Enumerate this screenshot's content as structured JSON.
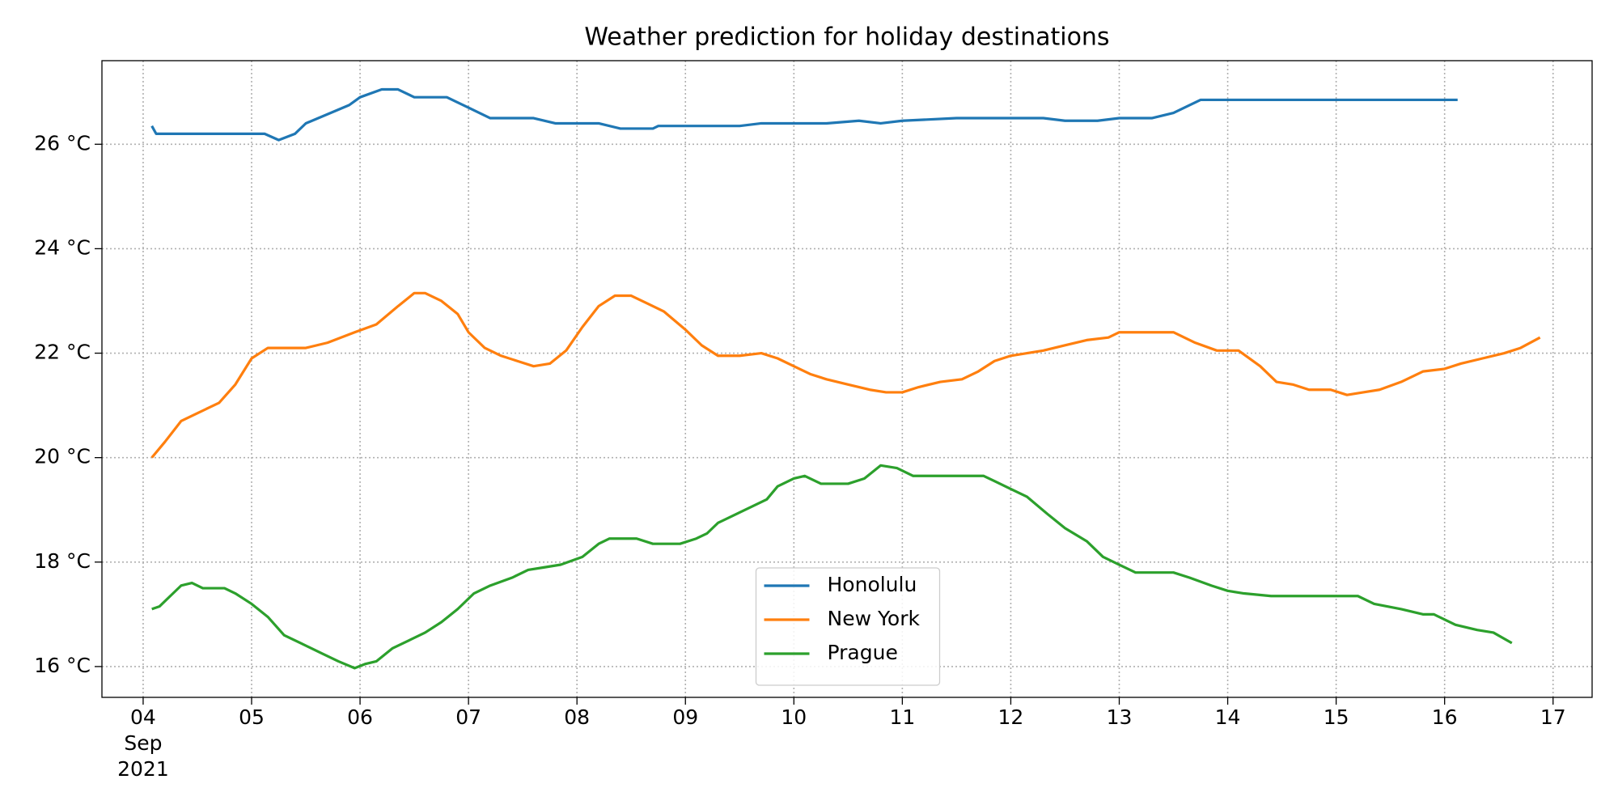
{
  "chart_data": {
    "type": "line",
    "title": "Weather prediction for holiday destinations",
    "x_month": "Sep",
    "x_year": "2021",
    "xlim": [
      3.62,
      17.36
    ],
    "xticks": [
      {
        "value": 4,
        "label": "04"
      },
      {
        "value": 5,
        "label": "05"
      },
      {
        "value": 6,
        "label": "06"
      },
      {
        "value": 7,
        "label": "07"
      },
      {
        "value": 8,
        "label": "08"
      },
      {
        "value": 9,
        "label": "09"
      },
      10,
      11,
      12,
      13,
      14,
      15,
      16,
      17
    ],
    "ylim": [
      15.41,
      27.6
    ],
    "yticks": [
      {
        "value": 16,
        "label": "16 °C"
      },
      {
        "value": 18,
        "label": "18 °C"
      },
      {
        "value": 20,
        "label": "20 °C"
      },
      {
        "value": 22,
        "label": "22 °C"
      },
      {
        "value": 24,
        "label": "24 °C"
      },
      {
        "value": 26,
        "label": "26 °C"
      }
    ],
    "grid": true,
    "legend": "lower center",
    "series": [
      {
        "name": "Honolulu",
        "color": "#1f77b4",
        "x": [
          4.08,
          4.12,
          5.12,
          5.25,
          5.4,
          5.5,
          5.9,
          6.0,
          6.2,
          6.35,
          6.5,
          6.8,
          7.0,
          7.2,
          7.6,
          7.8,
          8.2,
          8.4,
          8.7,
          8.75,
          9.5,
          9.7,
          10.0,
          10.3,
          10.6,
          10.8,
          11.0,
          11.5,
          12.3,
          12.5,
          12.8,
          13.0,
          13.3,
          13.5,
          13.75,
          16.12
        ],
        "values": [
          26.35,
          26.2,
          26.2,
          26.08,
          26.2,
          26.4,
          26.75,
          26.9,
          27.05,
          27.05,
          26.9,
          26.9,
          26.7,
          26.5,
          26.5,
          26.4,
          26.4,
          26.3,
          26.3,
          26.35,
          26.35,
          26.4,
          26.4,
          26.4,
          26.45,
          26.4,
          26.45,
          26.5,
          26.5,
          26.45,
          26.45,
          26.5,
          26.5,
          26.6,
          26.85,
          26.85
        ]
      },
      {
        "name": "New York",
        "color": "#ff7f0e",
        "x": [
          4.08,
          4.2,
          4.35,
          4.6,
          4.7,
          4.85,
          5.0,
          5.15,
          5.3,
          5.5,
          5.7,
          5.95,
          6.15,
          6.35,
          6.5,
          6.6,
          6.75,
          6.9,
          7.0,
          7.15,
          7.3,
          7.45,
          7.6,
          7.75,
          7.9,
          8.05,
          8.2,
          8.35,
          8.5,
          8.65,
          8.8,
          9.0,
          9.15,
          9.3,
          9.5,
          9.7,
          9.85,
          10.0,
          10.15,
          10.3,
          10.5,
          10.7,
          10.85,
          11.0,
          11.15,
          11.35,
          11.55,
          11.7,
          11.85,
          12.0,
          12.15,
          12.3,
          12.5,
          12.7,
          12.9,
          13.0,
          13.5,
          13.7,
          13.9,
          14.1,
          14.3,
          14.45,
          14.6,
          14.75,
          14.95,
          15.1,
          15.25,
          15.4,
          15.6,
          15.8,
          16.0,
          16.15,
          16.35,
          16.55,
          16.7,
          16.88
        ],
        "values": [
          20.0,
          20.3,
          20.7,
          20.95,
          21.05,
          21.4,
          21.9,
          22.1,
          22.1,
          22.1,
          22.2,
          22.4,
          22.55,
          22.9,
          23.15,
          23.15,
          23.0,
          22.75,
          22.4,
          22.1,
          21.95,
          21.85,
          21.75,
          21.8,
          22.05,
          22.5,
          22.9,
          23.1,
          23.1,
          22.95,
          22.8,
          22.45,
          22.15,
          21.95,
          21.95,
          22.0,
          21.9,
          21.75,
          21.6,
          21.5,
          21.4,
          21.3,
          21.25,
          21.25,
          21.35,
          21.45,
          21.5,
          21.65,
          21.85,
          21.95,
          22.0,
          22.05,
          22.15,
          22.25,
          22.3,
          22.4,
          22.4,
          22.2,
          22.05,
          22.05,
          21.75,
          21.45,
          21.4,
          21.3,
          21.3,
          21.2,
          21.25,
          21.3,
          21.45,
          21.65,
          21.7,
          21.8,
          21.9,
          22.0,
          22.1,
          22.3
        ]
      },
      {
        "name": "Prague",
        "color": "#2ca02c",
        "x": [
          4.08,
          4.15,
          4.25,
          4.35,
          4.45,
          4.55,
          4.75,
          4.85,
          5.0,
          5.15,
          5.3,
          5.45,
          5.55,
          5.65,
          5.8,
          5.95,
          6.05,
          6.15,
          6.3,
          6.45,
          6.6,
          6.75,
          6.9,
          7.05,
          7.2,
          7.4,
          7.55,
          7.7,
          7.85,
          8.05,
          8.2,
          8.3,
          8.55,
          8.7,
          8.95,
          9.1,
          9.2,
          9.3,
          9.5,
          9.75,
          9.85,
          10.0,
          10.1,
          10.25,
          10.5,
          10.65,
          10.8,
          10.95,
          11.1,
          11.75,
          11.85,
          12.0,
          12.15,
          12.35,
          12.5,
          12.7,
          12.85,
          13.0,
          13.15,
          13.5,
          13.65,
          13.85,
          14.0,
          14.15,
          14.4,
          15.2,
          15.35,
          15.6,
          15.8,
          15.9,
          16.1,
          16.3,
          16.45,
          16.62
        ],
        "values": [
          17.1,
          17.15,
          17.35,
          17.55,
          17.6,
          17.5,
          17.5,
          17.4,
          17.2,
          16.95,
          16.6,
          16.45,
          16.35,
          16.25,
          16.1,
          15.97,
          16.05,
          16.1,
          16.35,
          16.5,
          16.65,
          16.85,
          17.1,
          17.4,
          17.55,
          17.7,
          17.85,
          17.9,
          17.95,
          18.1,
          18.35,
          18.45,
          18.45,
          18.35,
          18.35,
          18.45,
          18.55,
          18.75,
          18.95,
          19.2,
          19.45,
          19.6,
          19.65,
          19.5,
          19.5,
          19.6,
          19.85,
          19.8,
          19.65,
          19.65,
          19.55,
          19.4,
          19.25,
          18.9,
          18.65,
          18.4,
          18.1,
          17.95,
          17.8,
          17.8,
          17.7,
          17.55,
          17.45,
          17.4,
          17.35,
          17.35,
          17.2,
          17.1,
          17.0,
          17.0,
          16.8,
          16.7,
          16.65,
          16.45
        ]
      }
    ]
  }
}
